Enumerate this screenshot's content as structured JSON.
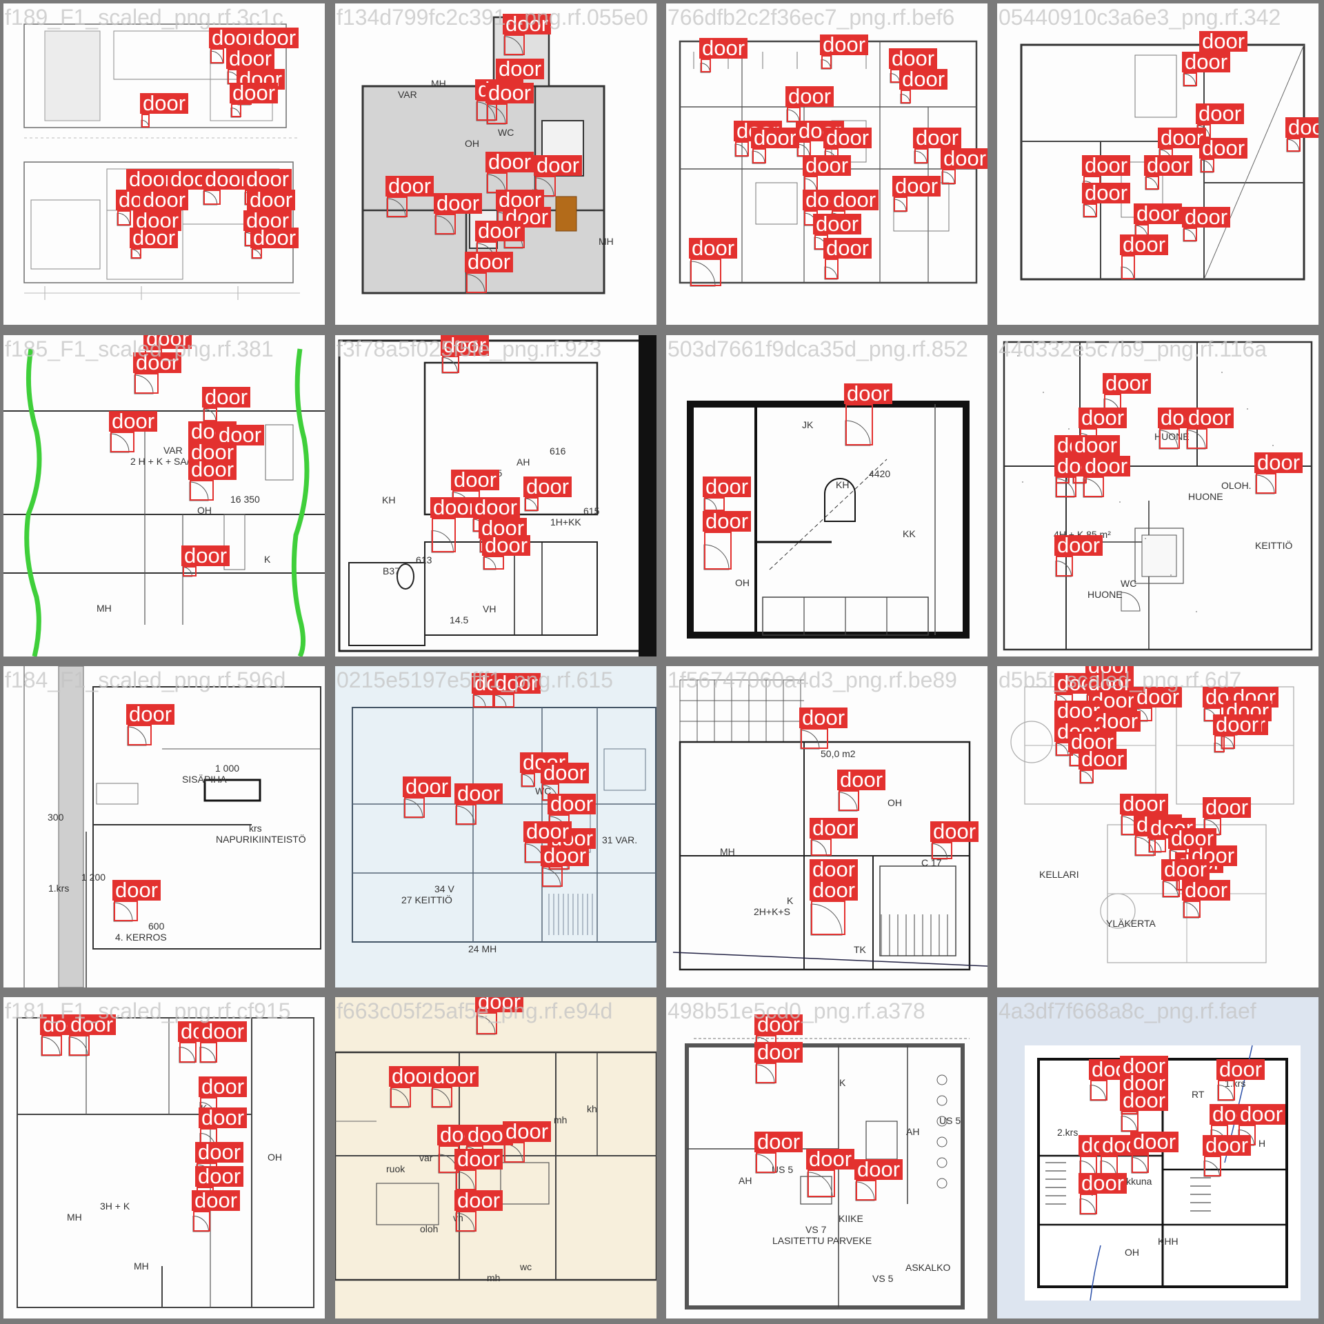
{
  "colors": {
    "detection": "#e3312f",
    "tile_background": "#fdfdfd",
    "mosaic_background": "#7a7a7a"
  },
  "tiles": [
    {
      "title": "f189_F1_scaled_png.rf.3c1c",
      "room_labels": [],
      "detections": [
        {
          "label": "door"
        },
        {
          "label": "door"
        },
        {
          "label": "door"
        },
        {
          "label": "door"
        },
        {
          "label": "door"
        },
        {
          "label": "door"
        },
        {
          "label": "door"
        },
        {
          "label": "door"
        },
        {
          "label": "door"
        },
        {
          "label": "door"
        },
        {
          "label": "door"
        },
        {
          "label": "door"
        },
        {
          "label": "door"
        },
        {
          "label": "door"
        },
        {
          "label": "door"
        },
        {
          "label": "door"
        },
        {
          "label": "door"
        }
      ]
    },
    {
      "title": "f134d799fc2c391...png.rf.055e0",
      "room_labels": [
        "VAR",
        "OH",
        "K",
        "MH",
        "MH",
        "WC"
      ],
      "detections": [
        {
          "label": "door"
        },
        {
          "label": "door"
        },
        {
          "label": "door"
        },
        {
          "label": "door"
        },
        {
          "label": "door"
        },
        {
          "label": "door"
        },
        {
          "label": "door"
        },
        {
          "label": "door"
        },
        {
          "label": "door"
        },
        {
          "label": "door"
        },
        {
          "label": "door"
        },
        {
          "label": "door"
        }
      ]
    },
    {
      "title": "766dfb2c2f36ec7_png.rf.bef6",
      "room_labels": [],
      "detections": [
        {
          "label": "door"
        },
        {
          "label": "door"
        },
        {
          "label": "door"
        },
        {
          "label": "door"
        },
        {
          "label": "door"
        },
        {
          "label": "door"
        },
        {
          "label": "door"
        },
        {
          "label": "door"
        },
        {
          "label": "door"
        },
        {
          "label": "door"
        },
        {
          "label": "door"
        },
        {
          "label": "door"
        },
        {
          "label": "door"
        },
        {
          "label": "door"
        },
        {
          "label": "door"
        },
        {
          "label": "door"
        },
        {
          "label": "door"
        },
        {
          "label": "door"
        }
      ]
    },
    {
      "title": "05440910c3a6e3_png.rf.342",
      "room_labels": [],
      "detections": [
        {
          "label": "door"
        },
        {
          "label": "door"
        },
        {
          "label": "door"
        },
        {
          "label": "door"
        },
        {
          "label": "door"
        },
        {
          "label": "door"
        },
        {
          "label": "door"
        },
        {
          "label": "door"
        },
        {
          "label": "door"
        },
        {
          "label": "door"
        },
        {
          "label": "door"
        },
        {
          "label": "door"
        }
      ]
    },
    {
      "title": "f185_F1_scaled_png.rf.381",
      "room_labels": [
        "2 H + K + SA/S",
        "OH",
        "K",
        "MH",
        "VAR",
        "16 350"
      ],
      "detections": [
        {
          "label": "door"
        },
        {
          "label": "door"
        },
        {
          "label": "door"
        },
        {
          "label": "door"
        },
        {
          "label": "door"
        },
        {
          "label": "door"
        },
        {
          "label": "door"
        },
        {
          "label": "door"
        },
        {
          "label": "door"
        }
      ]
    },
    {
      "title": "f3f78a5f025f5fe_png.rf.923",
      "room_labels": [
        "23.5",
        "1H+KK",
        "B37",
        "14.5",
        "AH",
        "615",
        "613",
        "VH",
        "616",
        "KH"
      ],
      "detections": [
        {
          "label": "door"
        },
        {
          "label": "door"
        },
        {
          "label": "door"
        },
        {
          "label": "door"
        },
        {
          "label": "door"
        },
        {
          "label": "door"
        },
        {
          "label": "door"
        }
      ]
    },
    {
      "title": "503d7661f9dca35d_png.rf.852",
      "room_labels": [
        "KH",
        "KK",
        "OH",
        "JK",
        "4420"
      ],
      "detections": [
        {
          "label": "door"
        },
        {
          "label": "door"
        },
        {
          "label": "door"
        }
      ]
    },
    {
      "title": "44d332e5c7b9_png.rf.116a",
      "room_labels": [
        "HUONE",
        "KEITTIÖ",
        "HUONE",
        "HUONE",
        "OLOH.",
        "4H + K 85 m²",
        "WC",
        "SV"
      ],
      "detections": [
        {
          "label": "door"
        },
        {
          "label": "door"
        },
        {
          "label": "door"
        },
        {
          "label": "door"
        },
        {
          "label": "door"
        },
        {
          "label": "door"
        },
        {
          "label": "door"
        },
        {
          "label": "door"
        },
        {
          "label": "door"
        },
        {
          "label": "door"
        }
      ]
    },
    {
      "title": "f184_F1_scaled_png.rf.596d",
      "room_labels": [
        "NAPURIKIINTEISTÖ",
        "1.krs",
        "4. KERROS",
        "SISÄPIHA",
        "krs",
        "1 200",
        "600",
        "1 000",
        "300"
      ],
      "detections": [
        {
          "label": "door"
        },
        {
          "label": "door"
        }
      ]
    },
    {
      "title": "0215e5197e5fff1_png.rf.615",
      "room_labels": [
        "OH",
        "27 KEITTIÖ",
        "24 MH",
        "WC",
        "31 VAR.",
        "34 V"
      ],
      "detections": [
        {
          "label": "door"
        },
        {
          "label": "door"
        },
        {
          "label": "door"
        },
        {
          "label": "door"
        },
        {
          "label": "door"
        },
        {
          "label": "door"
        },
        {
          "label": "door"
        },
        {
          "label": "door"
        },
        {
          "label": "door"
        },
        {
          "label": "door"
        }
      ]
    },
    {
      "title": "1f56747060a4d3_png.rf.be89",
      "room_labels": [
        "C 17",
        "2H+K+S",
        "50,0 m2",
        "OH",
        "MH",
        "K",
        "TK"
      ],
      "detections": [
        {
          "label": "door"
        },
        {
          "label": "door"
        },
        {
          "label": "door"
        },
        {
          "label": "door"
        },
        {
          "label": "door"
        },
        {
          "label": "door"
        }
      ]
    },
    {
      "title": "d5b5f_scaled_png.rf.6d7",
      "room_labels": [
        "KELLARI",
        "YLÄKERTA"
      ],
      "detections": [
        {
          "label": "door"
        },
        {
          "label": "door"
        },
        {
          "label": "door"
        },
        {
          "label": "door"
        },
        {
          "label": "door"
        },
        {
          "label": "door"
        },
        {
          "label": "door"
        },
        {
          "label": "door"
        },
        {
          "label": "door"
        },
        {
          "label": "door"
        },
        {
          "label": "door"
        },
        {
          "label": "door"
        },
        {
          "label": "door"
        },
        {
          "label": "door"
        },
        {
          "label": "door"
        },
        {
          "label": "door"
        },
        {
          "label": "door"
        },
        {
          "label": "door"
        },
        {
          "label": "door"
        },
        {
          "label": "door"
        },
        {
          "label": "door"
        },
        {
          "label": "door"
        },
        {
          "label": "door"
        },
        {
          "label": "door"
        }
      ]
    },
    {
      "title": "f181_F1_scaled_png.rf.cf915",
      "room_labels": [
        "MH",
        "MH",
        "K",
        "OH",
        "3H + K"
      ],
      "detections": [
        {
          "label": "door"
        },
        {
          "label": "door"
        },
        {
          "label": "door"
        },
        {
          "label": "door"
        },
        {
          "label": "door"
        },
        {
          "label": "door"
        },
        {
          "label": "door"
        },
        {
          "label": "door"
        },
        {
          "label": "door"
        }
      ]
    },
    {
      "title": "f663c05f25af5e_png.rf.e94d",
      "room_labels": [
        "oloh",
        "mh",
        "mh",
        "ruok",
        "vh",
        "wc",
        "kh",
        "var"
      ],
      "detections": [
        {
          "label": "door"
        },
        {
          "label": "door"
        },
        {
          "label": "door"
        },
        {
          "label": "door"
        },
        {
          "label": "door"
        },
        {
          "label": "door"
        },
        {
          "label": "door"
        },
        {
          "label": "door"
        }
      ]
    },
    {
      "title": "498b51e5cd0_png.rf.a378",
      "room_labels": [
        "LASITETTU PARVEKE",
        "K",
        "AH",
        "AH",
        "VS 7",
        "VS 5",
        "US 5",
        "US 5",
        "KIIKE",
        "ASKALKO"
      ],
      "detections": [
        {
          "label": "door"
        },
        {
          "label": "door"
        },
        {
          "label": "door"
        },
        {
          "label": "door"
        },
        {
          "label": "door"
        }
      ]
    },
    {
      "title": "4a3df7f668a8c_png.rf.faef",
      "room_labels": [
        "OH",
        "RT",
        "H",
        "H",
        "KHH",
        "1.krs",
        "2.krs",
        "ikkuna"
      ],
      "detections": [
        {
          "label": "door"
        },
        {
          "label": "door"
        },
        {
          "label": "door"
        },
        {
          "label": "door"
        },
        {
          "label": "door"
        },
        {
          "label": "door"
        },
        {
          "label": "door"
        },
        {
          "label": "door"
        },
        {
          "label": "door"
        },
        {
          "label": "door"
        },
        {
          "label": "door"
        },
        {
          "label": "door"
        }
      ]
    }
  ]
}
